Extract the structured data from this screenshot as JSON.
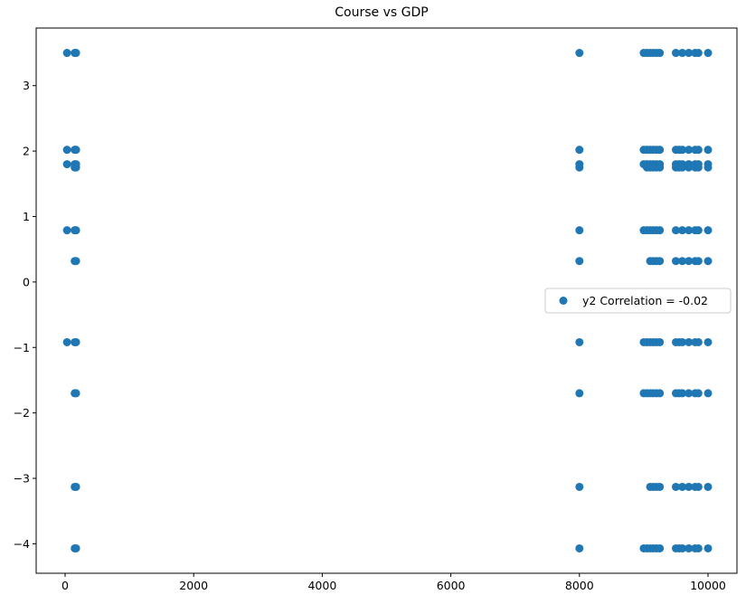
{
  "chart_data": {
    "type": "scatter",
    "title": "Course vs GDP",
    "xlabel": "",
    "ylabel": "",
    "xlim": [
      -450,
      10450
    ],
    "ylim": [
      -4.45,
      3.88
    ],
    "xticks": [
      0,
      2000,
      4000,
      6000,
      8000,
      10000
    ],
    "yticks": [
      -4,
      -3,
      -2,
      -1,
      0,
      1,
      2,
      3
    ],
    "ytick_labels": [
      "−4",
      "−3",
      "−2",
      "−1",
      "0",
      "1",
      "2",
      "3"
    ],
    "grid": false,
    "legend_position": "center-right",
    "color": "#1f77b4",
    "series": [
      {
        "name": "y2 Correlation = -0.02",
        "points": [
          [
            30,
            3.5
          ],
          [
            150,
            3.5
          ],
          [
            170,
            3.5
          ],
          [
            30,
            2.02
          ],
          [
            150,
            2.02
          ],
          [
            170,
            2.02
          ],
          [
            30,
            1.8
          ],
          [
            150,
            1.8
          ],
          [
            170,
            1.8
          ],
          [
            150,
            1.75
          ],
          [
            170,
            1.75
          ],
          [
            30,
            0.79
          ],
          [
            150,
            0.79
          ],
          [
            170,
            0.79
          ],
          [
            150,
            0.32
          ],
          [
            170,
            0.32
          ],
          [
            30,
            -0.92
          ],
          [
            150,
            -0.92
          ],
          [
            170,
            -0.92
          ],
          [
            150,
            -1.7
          ],
          [
            170,
            -1.7
          ],
          [
            150,
            -3.13
          ],
          [
            170,
            -3.13
          ],
          [
            150,
            -4.07
          ],
          [
            170,
            -4.07
          ],
          [
            8000,
            3.5
          ],
          [
            8000,
            2.02
          ],
          [
            8000,
            1.8
          ],
          [
            8000,
            1.75
          ],
          [
            8000,
            0.79
          ],
          [
            8000,
            0.32
          ],
          [
            8000,
            -0.92
          ],
          [
            8000,
            -1.7
          ],
          [
            8000,
            -3.13
          ],
          [
            8000,
            -4.07
          ],
          [
            9000,
            3.5
          ],
          [
            9050,
            3.5
          ],
          [
            9100,
            3.5
          ],
          [
            9150,
            3.5
          ],
          [
            9200,
            3.5
          ],
          [
            9250,
            3.5
          ],
          [
            9500,
            3.5
          ],
          [
            9600,
            3.5
          ],
          [
            9700,
            3.5
          ],
          [
            9800,
            3.5
          ],
          [
            9850,
            3.5
          ],
          [
            10000,
            3.5
          ],
          [
            9000,
            2.02
          ],
          [
            9050,
            2.02
          ],
          [
            9100,
            2.02
          ],
          [
            9150,
            2.02
          ],
          [
            9200,
            2.02
          ],
          [
            9250,
            2.02
          ],
          [
            9500,
            2.02
          ],
          [
            9550,
            2.02
          ],
          [
            9600,
            2.02
          ],
          [
            9700,
            2.02
          ],
          [
            9800,
            2.02
          ],
          [
            9850,
            2.02
          ],
          [
            10000,
            2.02
          ],
          [
            9000,
            1.8
          ],
          [
            9050,
            1.8
          ],
          [
            9100,
            1.8
          ],
          [
            9150,
            1.8
          ],
          [
            9200,
            1.8
          ],
          [
            9250,
            1.8
          ],
          [
            9500,
            1.8
          ],
          [
            9550,
            1.8
          ],
          [
            9600,
            1.8
          ],
          [
            9700,
            1.8
          ],
          [
            9800,
            1.8
          ],
          [
            9850,
            1.8
          ],
          [
            10000,
            1.8
          ],
          [
            9050,
            1.75
          ],
          [
            9100,
            1.75
          ],
          [
            9150,
            1.75
          ],
          [
            9200,
            1.75
          ],
          [
            9250,
            1.75
          ],
          [
            9500,
            1.75
          ],
          [
            9550,
            1.75
          ],
          [
            9600,
            1.75
          ],
          [
            9700,
            1.75
          ],
          [
            9800,
            1.75
          ],
          [
            9850,
            1.75
          ],
          [
            10000,
            1.75
          ],
          [
            9000,
            0.79
          ],
          [
            9050,
            0.79
          ],
          [
            9100,
            0.79
          ],
          [
            9150,
            0.79
          ],
          [
            9200,
            0.79
          ],
          [
            9250,
            0.79
          ],
          [
            9500,
            0.79
          ],
          [
            9600,
            0.79
          ],
          [
            9700,
            0.79
          ],
          [
            9800,
            0.79
          ],
          [
            9850,
            0.79
          ],
          [
            10000,
            0.79
          ],
          [
            9100,
            0.32
          ],
          [
            9150,
            0.32
          ],
          [
            9200,
            0.32
          ],
          [
            9250,
            0.32
          ],
          [
            9500,
            0.32
          ],
          [
            9600,
            0.32
          ],
          [
            9700,
            0.32
          ],
          [
            9800,
            0.32
          ],
          [
            9850,
            0.32
          ],
          [
            10000,
            0.32
          ],
          [
            9000,
            -0.92
          ],
          [
            9050,
            -0.92
          ],
          [
            9100,
            -0.92
          ],
          [
            9150,
            -0.92
          ],
          [
            9200,
            -0.92
          ],
          [
            9250,
            -0.92
          ],
          [
            9500,
            -0.92
          ],
          [
            9550,
            -0.92
          ],
          [
            9600,
            -0.92
          ],
          [
            9700,
            -0.92
          ],
          [
            9800,
            -0.92
          ],
          [
            9850,
            -0.92
          ],
          [
            10000,
            -0.92
          ],
          [
            9000,
            -1.7
          ],
          [
            9050,
            -1.7
          ],
          [
            9100,
            -1.7
          ],
          [
            9150,
            -1.7
          ],
          [
            9200,
            -1.7
          ],
          [
            9250,
            -1.7
          ],
          [
            9500,
            -1.7
          ],
          [
            9550,
            -1.7
          ],
          [
            9600,
            -1.7
          ],
          [
            9700,
            -1.7
          ],
          [
            9800,
            -1.7
          ],
          [
            9850,
            -1.7
          ],
          [
            10000,
            -1.7
          ],
          [
            9100,
            -3.13
          ],
          [
            9150,
            -3.13
          ],
          [
            9200,
            -3.13
          ],
          [
            9250,
            -3.13
          ],
          [
            9500,
            -3.13
          ],
          [
            9600,
            -3.13
          ],
          [
            9700,
            -3.13
          ],
          [
            9800,
            -3.13
          ],
          [
            9850,
            -3.13
          ],
          [
            10000,
            -3.13
          ],
          [
            9000,
            -4.07
          ],
          [
            9050,
            -4.07
          ],
          [
            9100,
            -4.07
          ],
          [
            9150,
            -4.07
          ],
          [
            9200,
            -4.07
          ],
          [
            9250,
            -4.07
          ],
          [
            9500,
            -4.07
          ],
          [
            9550,
            -4.07
          ],
          [
            9600,
            -4.07
          ],
          [
            9700,
            -4.07
          ],
          [
            9800,
            -4.07
          ],
          [
            9850,
            -4.07
          ],
          [
            10000,
            -4.07
          ]
        ]
      }
    ]
  }
}
